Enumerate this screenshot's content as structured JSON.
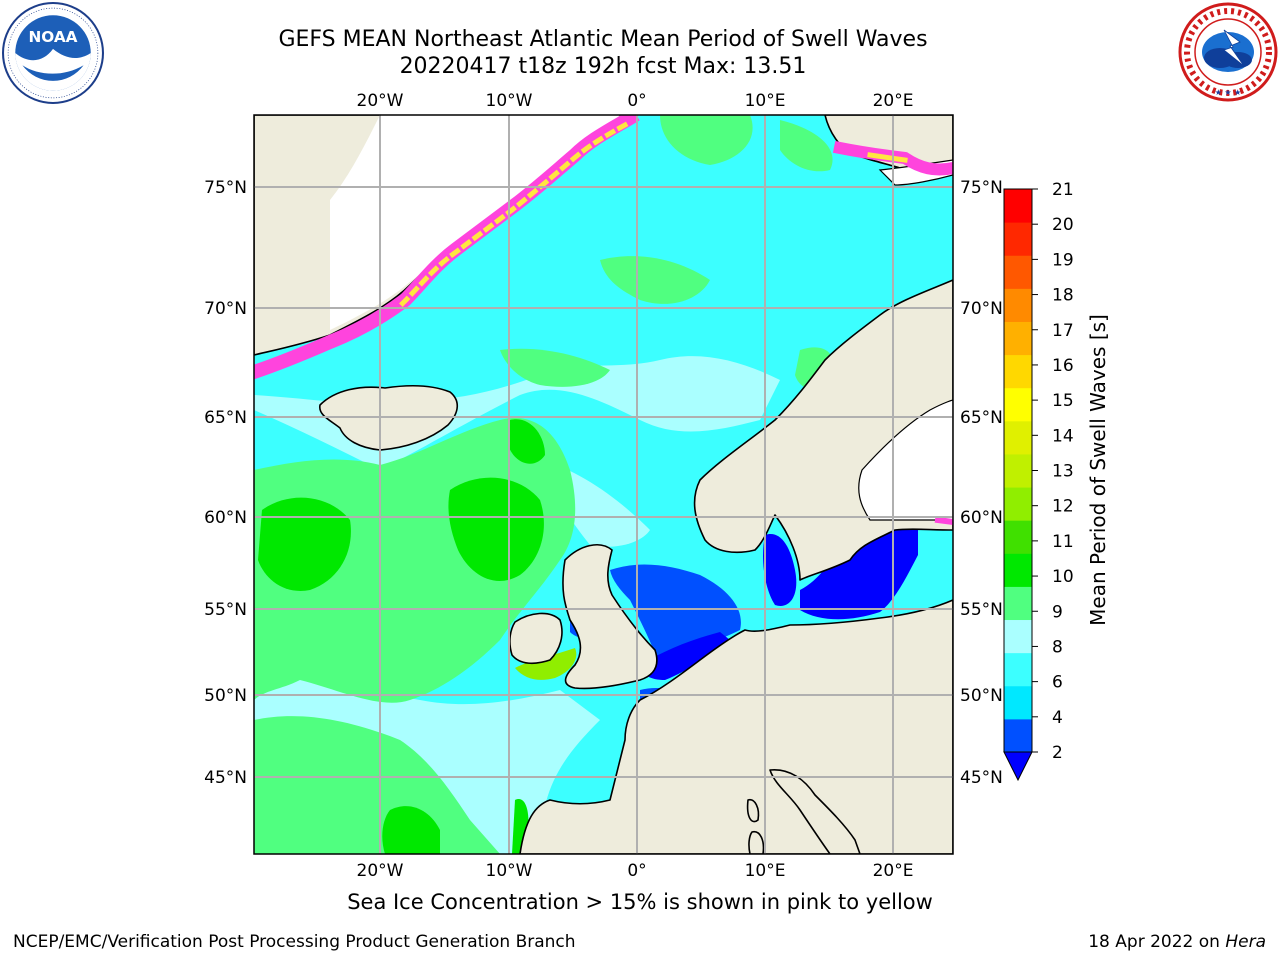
{
  "header": {
    "title_line1": "GEFS MEAN Northeast Atlantic Mean Period of Swell Waves",
    "title_line2": "20220417 t18z 192h fcst   Max: 13.51"
  },
  "logos": {
    "noaa": {
      "icon": "noaa-logo",
      "letters": "NOAA",
      "ring_text": "NATIONAL OCEANIC AND ATMOSPHERIC ADMINISTRATION · U.S. DEPARTMENT OF COMMERCE"
    },
    "nws": {
      "icon": "nws-logo",
      "ring_text": "NATIONAL WEATHER SERVICE"
    }
  },
  "map": {
    "region": "Northeast Atlantic",
    "lon_ticks": [
      "20°W",
      "10°W",
      "0°",
      "10°E",
      "20°E"
    ],
    "lat_ticks_left": [
      "75°N",
      "70°N",
      "65°N",
      "60°N",
      "55°N",
      "50°N",
      "45°N"
    ],
    "lat_ticks_right": [
      "75°N",
      "70°N",
      "65°N",
      "60°N",
      "55°N",
      "50°N",
      "45°N"
    ],
    "colors": {
      "land": "#eeecdc",
      "grid": "#b0b0b0",
      "ice_pink": "#ff44dd",
      "ice_yellow": "#ffe640"
    }
  },
  "colorbar": {
    "label": "Mean Period of Swell Waves [s]",
    "ticks": [
      "2",
      "4",
      "6",
      "8",
      "9",
      "10",
      "11",
      "12",
      "13",
      "14",
      "15",
      "16",
      "17",
      "18",
      "19",
      "20",
      "21"
    ],
    "colors": [
      "#0050ff",
      "#00e8ff",
      "#3cffff",
      "#aaffff",
      "#50ff80",
      "#00e800",
      "#40e000",
      "#90ee00",
      "#c0f000",
      "#e0f000",
      "#ffff00",
      "#ffd800",
      "#ffb000",
      "#ff8a00",
      "#ff5800",
      "#ff2800",
      "#ff0000"
    ],
    "under_color": "#0000ff",
    "extend": "min"
  },
  "footer": {
    "caption": "Sea Ice Concentration > 15% is shown in pink to yellow",
    "credit": "NCEP/EMC/Verification Post Processing Product Generation Branch",
    "date": "18 Apr 2022 on ",
    "host": "Hera"
  }
}
